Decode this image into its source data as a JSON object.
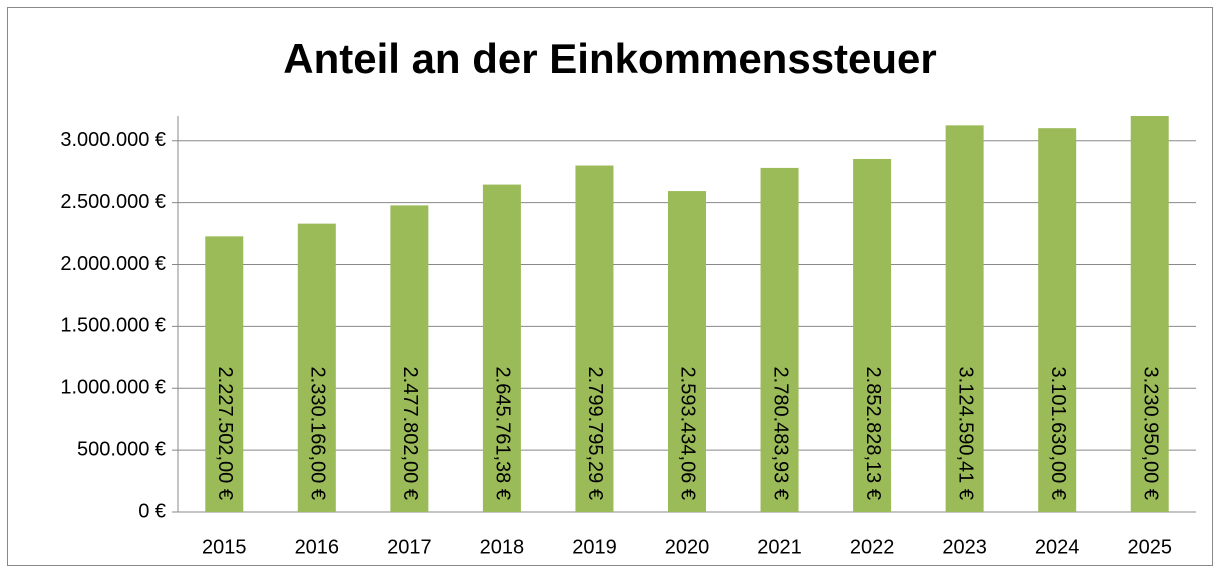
{
  "chart_data": {
    "type": "bar",
    "title": "Anteil an der Einkommenssteuer",
    "categories": [
      "2015",
      "2016",
      "2017",
      "2018",
      "2019",
      "2020",
      "2021",
      "2022",
      "2023",
      "2024",
      "2025"
    ],
    "values": [
      2227502.0,
      2330166.0,
      2477802.0,
      2645761.38,
      2799795.29,
      2593434.06,
      2780483.93,
      2852828.13,
      3124590.41,
      3101630.0,
      3230950.0
    ],
    "value_labels": [
      "2.227.502,00 €",
      "2.330.166,00 €",
      "2.477.802,00 €",
      "2.645.761,38 €",
      "2.799.795,29 €",
      "2.593.434,06 €",
      "2.780.483,93 €",
      "2.852.828,13 €",
      "3.124.590,41 €",
      "3.101.630,00 €",
      "3.230.950,00 €"
    ],
    "color": "#9bbb59",
    "ylim": [
      0,
      3200000
    ],
    "yticks": [
      {
        "value": 0,
        "label": "0 €"
      },
      {
        "value": 500000,
        "label": "500.000 €"
      },
      {
        "value": 1000000,
        "label": "1.000.000 €"
      },
      {
        "value": 1500000,
        "label": "1.500.000 €"
      },
      {
        "value": 2000000,
        "label": "2.000.000 €"
      },
      {
        "value": 2500000,
        "label": "2.500.000 €"
      },
      {
        "value": 3000000,
        "label": "3.000.000 €"
      }
    ],
    "grid": true
  }
}
